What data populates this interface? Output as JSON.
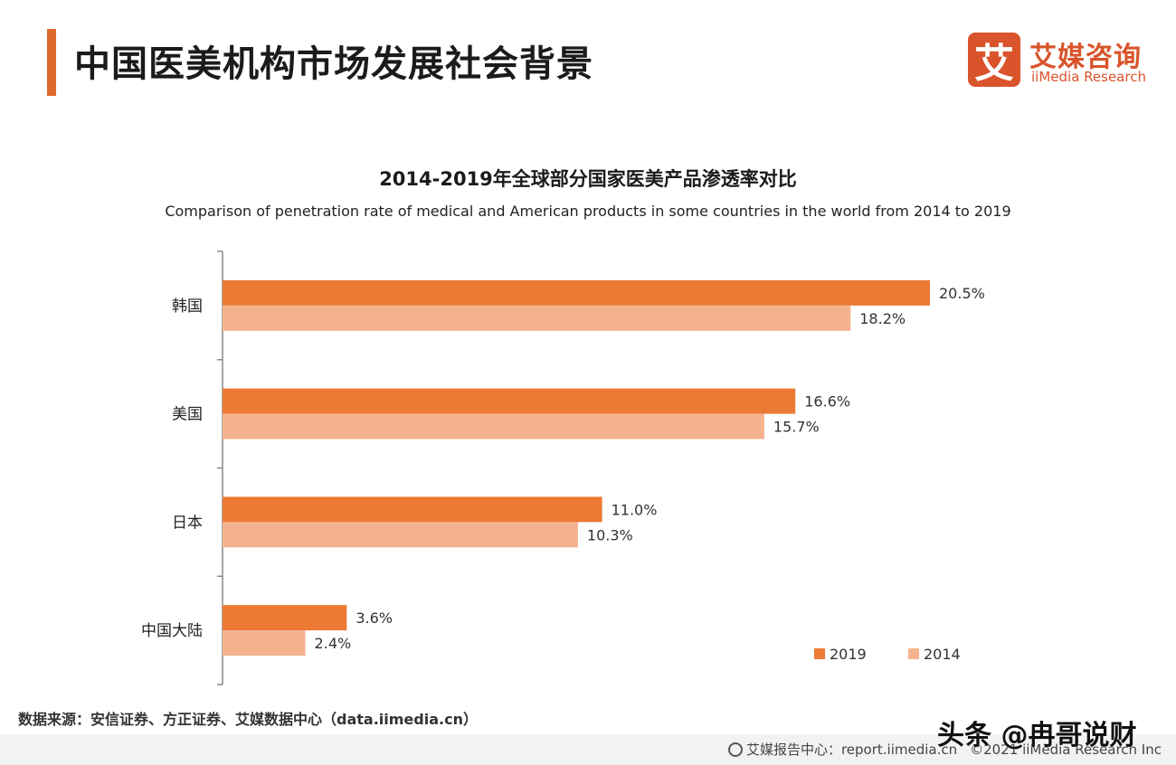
{
  "page": {
    "title": "中国医美机构市场发展社会背景",
    "brand_cn": "艾媒咨询",
    "brand_en": "iiMedia Research",
    "brand_logo_char": "艾",
    "source": "数据来源：安信证券、方正证券、艾媒数据中心（data.iimedia.cn）",
    "footer_report": "艾媒报告中心：report.iimedia.cn",
    "footer_copyright": "©2021  iiMedia Research  Inc",
    "watermark": "头条 @冉哥说财"
  },
  "colors": {
    "accent": "#e06a2c",
    "series_2019": "#ec7a34",
    "series_2014": "#f4b38e",
    "axis": "#8a8a8a"
  },
  "chart_data": {
    "type": "bar",
    "orientation": "horizontal",
    "title": "2014-2019年全球部分国家医美产品渗透率对比",
    "subtitle": "Comparison of penetration rate of medical and American products in some countries in the world from 2014 to 2019",
    "categories": [
      "韩国",
      "美国",
      "日本",
      "中国大陆"
    ],
    "series": [
      {
        "name": "2019",
        "values": [
          20.5,
          16.6,
          11.0,
          3.6
        ],
        "labels": [
          "20.5%",
          "16.6%",
          "11.0%",
          "3.6%"
        ]
      },
      {
        "name": "2014",
        "values": [
          18.2,
          15.7,
          10.3,
          2.4
        ],
        "labels": [
          "18.2%",
          "15.7%",
          "10.3%",
          "2.4%"
        ]
      }
    ],
    "xlim": [
      0,
      20.5
    ],
    "unit": "%",
    "legend_position": "bottom-right",
    "grid": false
  }
}
